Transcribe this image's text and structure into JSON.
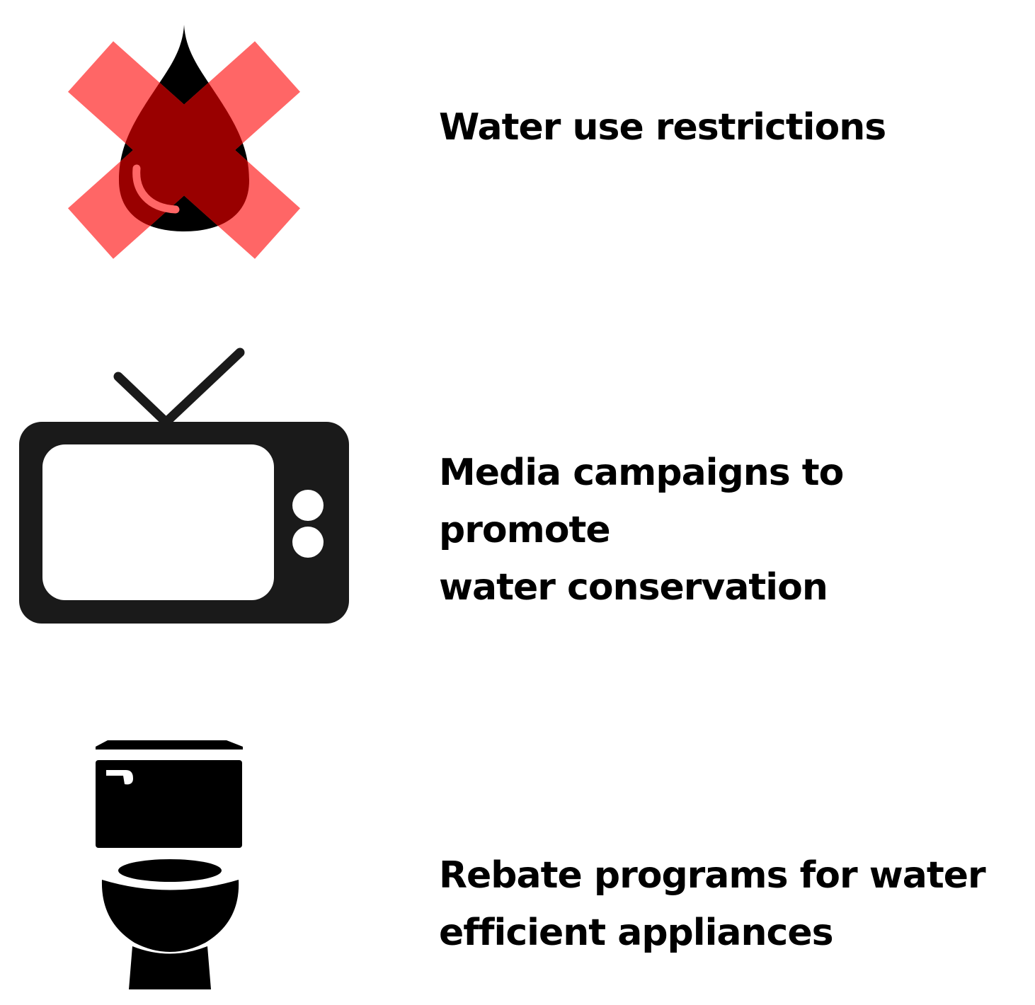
{
  "items": [
    {
      "icon": "water-drop-crossed-icon",
      "label": "Water use restrictions"
    },
    {
      "icon": "television-icon",
      "label": "Media campaigns to promote\nwater conservation"
    },
    {
      "icon": "toilet-icon",
      "label": "Rebate programs for water\nefficient appliances"
    }
  ],
  "colors": {
    "cross": "#ff6666",
    "drop": "#000000",
    "drop_overlap": "#990000",
    "tv": "#1a1a1a",
    "toilet": "#000000",
    "text": "#000000"
  }
}
